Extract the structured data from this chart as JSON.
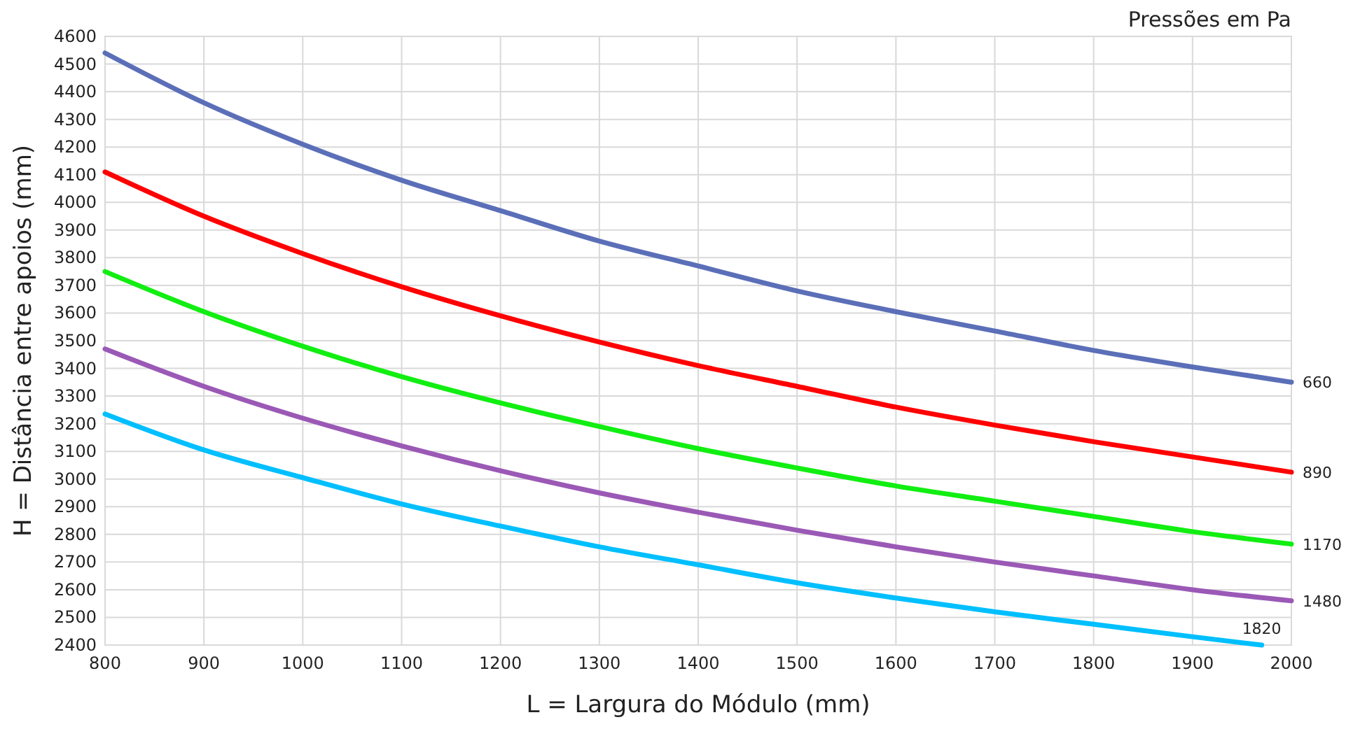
{
  "chart_data": {
    "type": "line",
    "xlabel": "L = Largura do Módulo (mm)",
    "ylabel": "H = Distância entre apoios (mm)",
    "legend_title": "Pressões em Pa",
    "x": [
      800,
      900,
      1000,
      1100,
      1200,
      1300,
      1400,
      1500,
      1600,
      1700,
      1800,
      1900,
      2000
    ],
    "xlim": [
      800,
      2000
    ],
    "xticks": [
      800,
      900,
      1000,
      1100,
      1200,
      1300,
      1400,
      1500,
      1600,
      1700,
      1800,
      1900,
      2000
    ],
    "ylim": [
      2400,
      4600
    ],
    "yticks": [
      2400,
      2500,
      2600,
      2700,
      2800,
      2900,
      3000,
      3100,
      3200,
      3300,
      3400,
      3500,
      3600,
      3700,
      3800,
      3900,
      4000,
      4100,
      4200,
      4300,
      4400,
      4500,
      4600
    ],
    "grid": true,
    "marker": "none",
    "line_style": "solid",
    "series": [
      {
        "name": "660",
        "color": "#5b6fb8",
        "values": [
          4540,
          4360,
          4210,
          4080,
          3970,
          3860,
          3770,
          3680,
          3605,
          3535,
          3465,
          3405,
          3350
        ]
      },
      {
        "name": "890",
        "color": "#ff0000",
        "values": [
          4110,
          3950,
          3815,
          3695,
          3590,
          3495,
          3410,
          3335,
          3260,
          3195,
          3135,
          3080,
          3025
        ]
      },
      {
        "name": "1170",
        "color": "#11ee11",
        "values": [
          3750,
          3605,
          3480,
          3370,
          3275,
          3190,
          3110,
          3040,
          2975,
          2920,
          2865,
          2810,
          2765
        ]
      },
      {
        "name": "1480",
        "color": "#9b59b6",
        "values": [
          3470,
          3335,
          3220,
          3120,
          3030,
          2950,
          2880,
          2815,
          2755,
          2700,
          2650,
          2600,
          2560
        ]
      },
      {
        "name": "1820",
        "color": "#00bfff",
        "x": [
          800,
          900,
          1000,
          1100,
          1200,
          1300,
          1400,
          1500,
          1600,
          1700,
          1800,
          1900,
          1970
        ],
        "values": [
          3235,
          3105,
          3005,
          2910,
          2830,
          2755,
          2690,
          2625,
          2570,
          2520,
          2475,
          2430,
          2400
        ]
      }
    ]
  }
}
